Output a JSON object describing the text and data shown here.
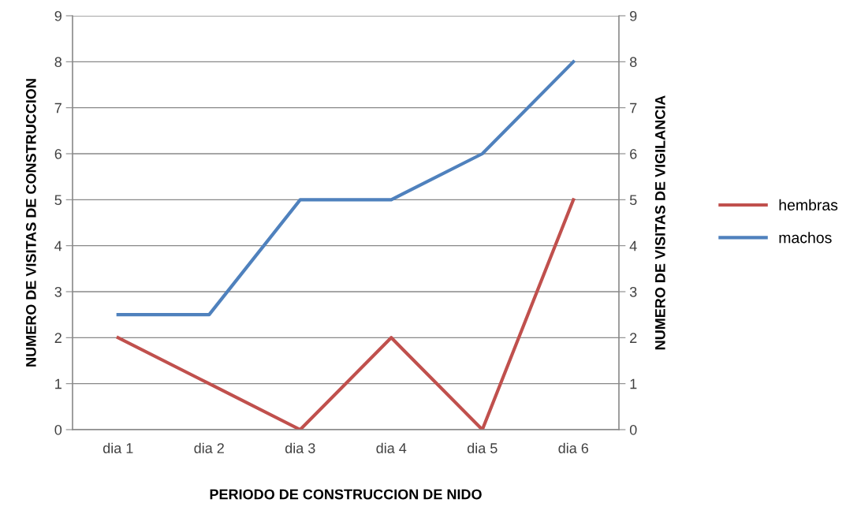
{
  "chart_data": {
    "type": "line",
    "xlabel": "PERIODO DE CONSTRUCCION DE NIDO",
    "ylabel": "NUMERO DE VISITAS DE CONSTRUCCION",
    "y2label": "NUMERO DE VISITAS DE VIGILANCIA",
    "categories": [
      "dia 1",
      "dia 2",
      "dia 3",
      "dia 4",
      "dia 5",
      "dia 6"
    ],
    "series": [
      {
        "name": "hembras",
        "color": "#c0504d",
        "values": [
          2,
          1,
          0,
          2,
          0,
          5
        ]
      },
      {
        "name": "machos",
        "color": "#4f81bd",
        "values": [
          2.5,
          2.5,
          5,
          5,
          6,
          8
        ]
      }
    ],
    "ylim": [
      0,
      9
    ],
    "yticks": [
      0,
      1,
      2,
      3,
      4,
      5,
      6,
      7,
      8,
      9
    ],
    "y2lim": [
      0,
      9
    ],
    "y2ticks": [
      0,
      1,
      2,
      3,
      4,
      5,
      6,
      7,
      8,
      9
    ],
    "grid": "y",
    "legend": "right",
    "marker": "none",
    "line_style": "solid"
  }
}
